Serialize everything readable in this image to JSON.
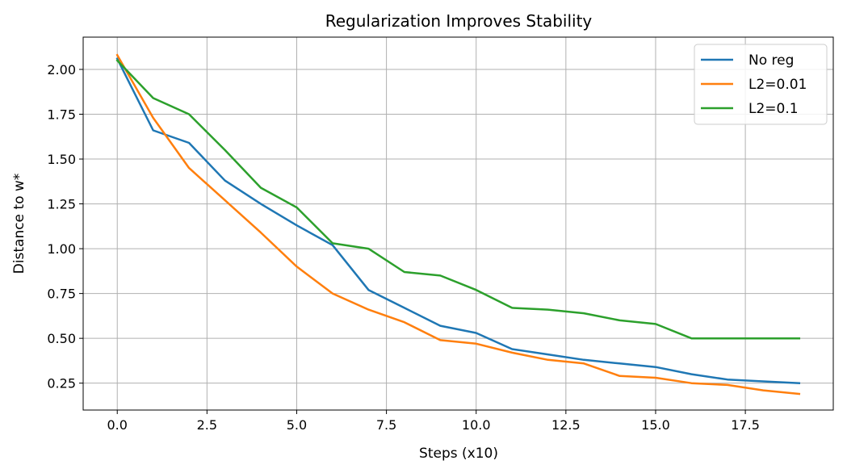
{
  "chart_data": {
    "type": "line",
    "title": "Regularization Improves Stability",
    "xlabel": "Steps (x10)",
    "ylabel": "Distance to w*",
    "xlim": [
      -0.95,
      19.95
    ],
    "ylim": [
      0.1,
      2.18
    ],
    "xticks": [
      0.0,
      2.5,
      5.0,
      7.5,
      10.0,
      12.5,
      15.0,
      17.5
    ],
    "xtick_labels": [
      "0.0",
      "2.5",
      "5.0",
      "7.5",
      "10.0",
      "12.5",
      "15.0",
      "17.5"
    ],
    "yticks": [
      0.25,
      0.5,
      0.75,
      1.0,
      1.25,
      1.5,
      1.75,
      2.0
    ],
    "ytick_labels": [
      "0.25",
      "0.50",
      "0.75",
      "1.00",
      "1.25",
      "1.50",
      "1.75",
      "2.00"
    ],
    "grid": true,
    "legend_position": "top-right",
    "x": [
      0,
      1,
      2,
      3,
      4,
      5,
      6,
      7,
      8,
      9,
      10,
      11,
      12,
      13,
      14,
      15,
      16,
      17,
      18,
      19
    ],
    "series": [
      {
        "name": "No reg",
        "color": "#1f77b4",
        "values": [
          2.06,
          1.66,
          1.59,
          1.38,
          1.25,
          1.13,
          1.02,
          0.77,
          0.67,
          0.57,
          0.53,
          0.44,
          0.41,
          0.38,
          0.36,
          0.34,
          0.3,
          0.27,
          0.26,
          0.25
        ]
      },
      {
        "name": "L2=0.01",
        "color": "#ff7f0e",
        "values": [
          2.08,
          1.73,
          1.45,
          1.27,
          1.09,
          0.9,
          0.75,
          0.66,
          0.59,
          0.49,
          0.47,
          0.42,
          0.38,
          0.36,
          0.29,
          0.28,
          0.25,
          0.24,
          0.21,
          0.19
        ]
      },
      {
        "name": "L2=0.1",
        "color": "#2ca02c",
        "values": [
          2.05,
          1.84,
          1.75,
          1.55,
          1.34,
          1.23,
          1.03,
          1.0,
          0.87,
          0.85,
          0.77,
          0.67,
          0.66,
          0.64,
          0.6,
          0.58,
          0.5,
          0.5,
          0.5,
          0.5
        ]
      }
    ]
  }
}
